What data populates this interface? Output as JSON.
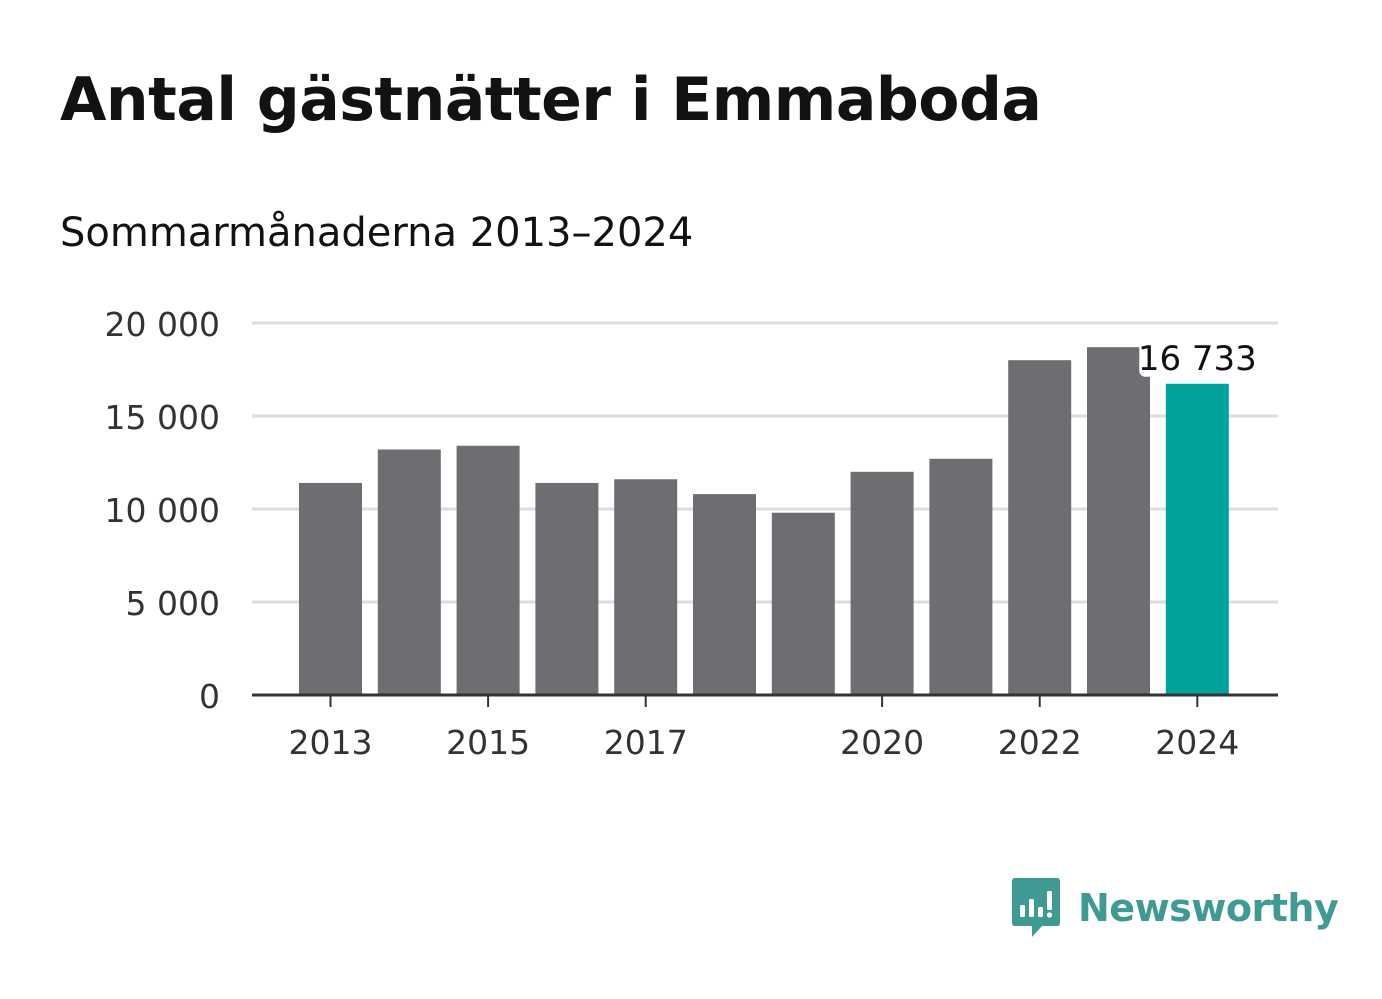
{
  "title": "Antal gästnätter i Emmaboda",
  "subtitle": "Sommarmånaderna 2013–2024",
  "brand": {
    "name": "Newsworthy",
    "icon": "newsworthy-logo-icon",
    "color": "#3f9a94"
  },
  "colors": {
    "bar": "#6e6d72",
    "highlight": "#00a399",
    "grid": "#dddddd",
    "axis": "#333333"
  },
  "chart_data": {
    "type": "bar",
    "categories": [
      "2013",
      "2014",
      "2015",
      "2016",
      "2017",
      "2018",
      "2019",
      "2020",
      "2021",
      "2022",
      "2023",
      "2024"
    ],
    "values": [
      11400,
      13200,
      13400,
      11400,
      11600,
      10800,
      9800,
      12000,
      12700,
      18000,
      18700,
      16733
    ],
    "highlight_index": 11,
    "data_labels": [
      {
        "index": 11,
        "text": "16 733"
      }
    ],
    "x_tick_labels": [
      "2013",
      "2015",
      "2017",
      "2020",
      "2022",
      "2024"
    ],
    "y_ticks": [
      0,
      5000,
      10000,
      15000,
      20000
    ],
    "y_tick_labels": [
      "0",
      "5 000",
      "10 000",
      "15 000",
      "20 000"
    ],
    "ylim": [
      0,
      20000
    ],
    "grid": true,
    "xlabel": "",
    "ylabel": ""
  }
}
